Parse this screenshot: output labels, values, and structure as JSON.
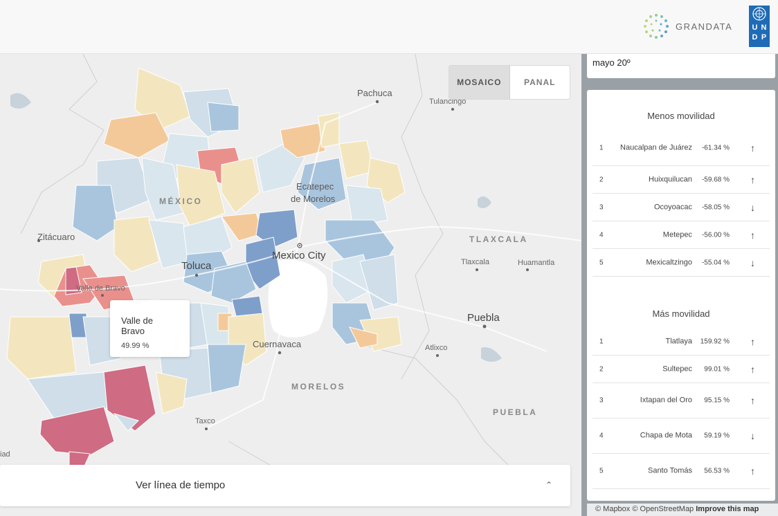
{
  "header": {
    "brand_name": "GRANDATA",
    "undp_letters": [
      "U",
      "N",
      "D",
      "P"
    ],
    "undp_color": "#1f6bb6"
  },
  "map_controls": {
    "mosaic_label": "MOSAICO",
    "panel_label": "PANAL",
    "active": "MOSAICO"
  },
  "map_labels": {
    "pachuca": "Pachuca",
    "tulancingo": "Tulancingo",
    "mexico_state": "MÉXICO",
    "ecatepec_1": "Ecatepec",
    "ecatepec_2": "de Morelos",
    "zitacuaro": "Zitácuaro",
    "tlaxcala_state": "TLAXCALA",
    "tlaxcala": "Tlaxcala",
    "huamantla": "Huamantla",
    "toluca": "Toluca",
    "mexico_city": "Mexico City",
    "valle_de_bravo": "Valle de Bravo",
    "puebla": "Puebla",
    "cuernavaca": "Cuernavaca",
    "atlixco": "Atlixco",
    "morelos_state": "MORELOS",
    "puebla_state": "PUEBLA",
    "taxco": "Taxco",
    "iad": "iad"
  },
  "tooltip": {
    "name": "Valle de Bravo",
    "value": "49.99 %"
  },
  "timeline": {
    "label": "Ver línea de tiempo",
    "chevron": "⌃"
  },
  "date": {
    "text": "mayo 20º"
  },
  "less_mobility": {
    "title": "Menos movilidad",
    "rows": [
      {
        "rank": "1",
        "name": "Naucalpan de Juárez",
        "value": "-61.34 %",
        "arrow": "↑"
      },
      {
        "rank": "2",
        "name": "Huixquilucan",
        "value": "-59.68 %",
        "arrow": "↑"
      },
      {
        "rank": "3",
        "name": "Ocoyoacac",
        "value": "-58.05 %",
        "arrow": "↓"
      },
      {
        "rank": "4",
        "name": "Metepec",
        "value": "-56.00 %",
        "arrow": "↑"
      },
      {
        "rank": "5",
        "name": "Mexicaltzingo",
        "value": "-55.04 %",
        "arrow": "↓"
      }
    ]
  },
  "more_mobility": {
    "title": "Más movilidad",
    "rows": [
      {
        "rank": "1",
        "name": "Tlatlaya",
        "value": "159.92 %",
        "arrow": "↑"
      },
      {
        "rank": "2",
        "name": "Sultepec",
        "value": "99.01 %",
        "arrow": "↑"
      },
      {
        "rank": "3",
        "name": "Ixtapan del Oro",
        "value": "95.15 %",
        "arrow": "↑"
      },
      {
        "rank": "4",
        "name": "Chapa de Mota",
        "value": "59.19 %",
        "arrow": "↓"
      },
      {
        "rank": "5",
        "name": "Santo Tomás",
        "value": "56.53 %",
        "arrow": "↑"
      }
    ]
  },
  "attribution": {
    "mapbox": "© Mapbox",
    "osm": "© OpenStreetMap",
    "improve": "Improve this map"
  },
  "colors": {
    "high_increase": "#cf6b82",
    "increase": "#e9908d",
    "slight_increase": "#f4c99a",
    "neutral": "#f3e6bf",
    "slight_decrease": "#d9e6ee",
    "decrease": "#a9c5de",
    "strong_decrease": "#7f9fcb"
  }
}
